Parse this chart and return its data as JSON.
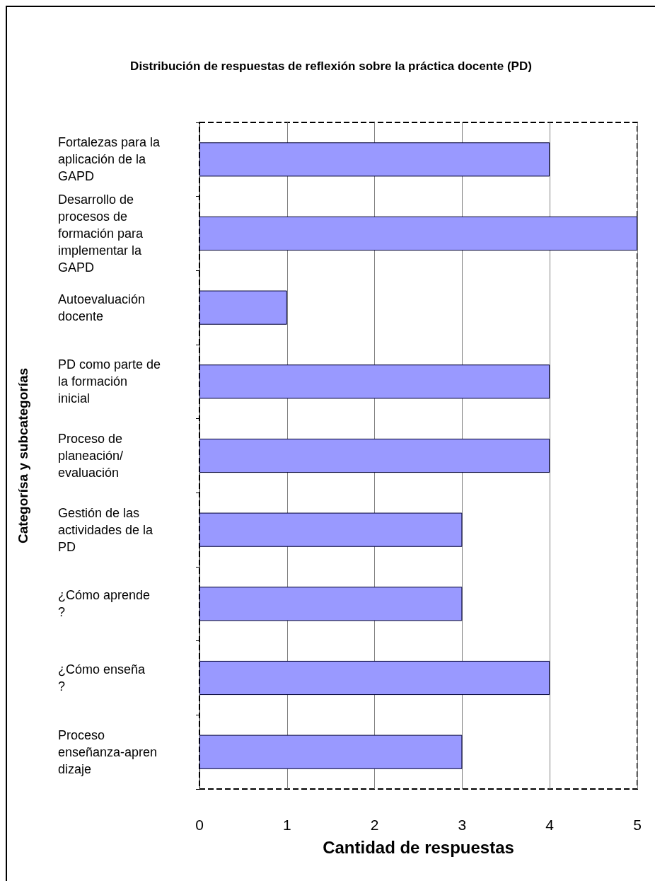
{
  "chart_data": {
    "type": "bar",
    "orientation": "horizontal",
    "title": "Distribución de respuestas de reflexión sobre la práctica docente (PD)",
    "xlabel": "Cantidad de respuestas",
    "ylabel": "Categorísa y subcategorías",
    "categories": [
      "Fortalezas para la aplicación de la GAPD",
      "Desarrollo de procesos de formación para implementar la GAPD",
      "Autoevaluación docente",
      "PD como parte de la formación inicial",
      "Proceso de planeación/ evaluación",
      "Gestión de las actividades de la PD",
      "¿Cómo aprende?",
      "¿Cómo enseña?",
      "Proceso enseñanza-aprendizaje"
    ],
    "values": [
      4,
      5,
      1,
      4,
      4,
      3,
      3,
      4,
      3
    ],
    "color": "#9999ff",
    "xlim": [
      0,
      5
    ],
    "xticks": [
      0,
      1,
      2,
      3,
      4,
      5
    ],
    "grid": "x"
  }
}
